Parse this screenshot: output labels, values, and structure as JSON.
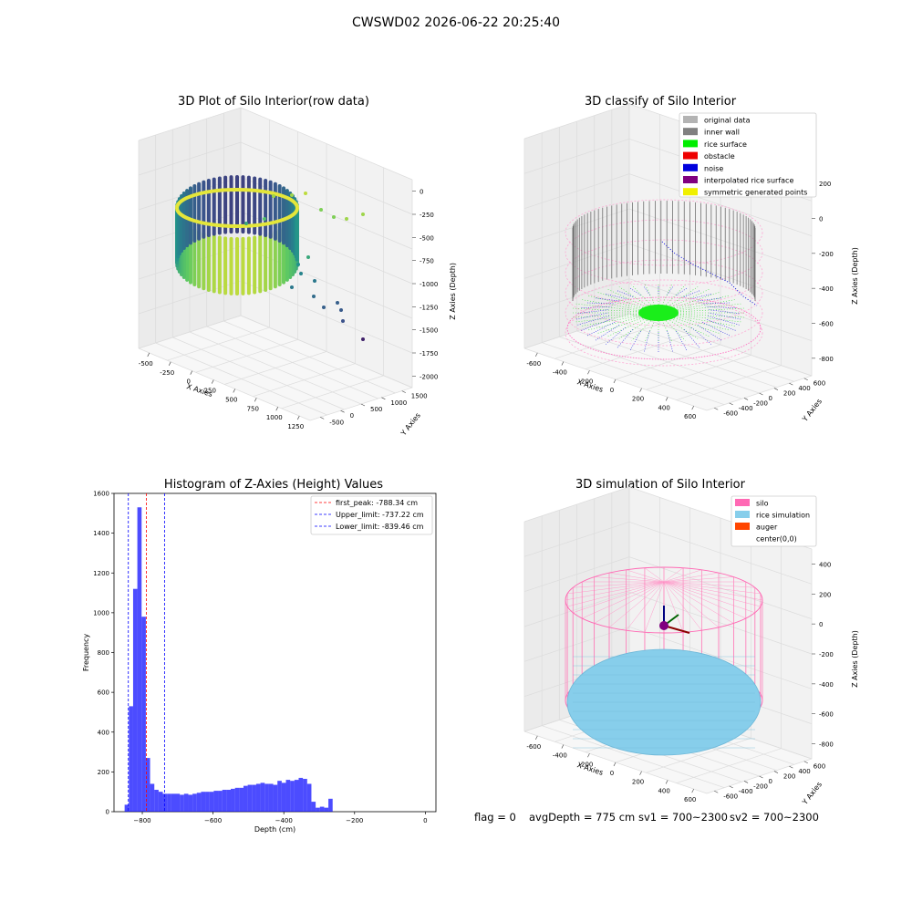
{
  "suptitle": "CWSWD02 2026-06-22 20:25:40",
  "footer": {
    "flag": "flag = 0",
    "avg": "avgDepth = 775 cm",
    "sv1": "sv1 = 700~2300",
    "sv2": "sv2 = 700~2300"
  },
  "chart_data": [
    {
      "type": "scatter",
      "title": "3D Plot of Silo Interior(row data)",
      "xlabel": "X Axies",
      "ylabel": "Y Axies",
      "zlabel": "Z Axies (Depth)",
      "x_ticks": [
        "-500",
        "-250",
        "0",
        "250",
        "500",
        "750",
        "1000",
        "1250"
      ],
      "y_ticks": [
        "-500",
        "0",
        "500",
        "1000",
        "1500"
      ],
      "z_ticks": [
        "0",
        "-250",
        "-500",
        "-750",
        "-1000",
        "-1250",
        "-1500",
        "-1750",
        "-2000"
      ],
      "colormap": "viridis"
    },
    {
      "type": "scatter",
      "title": "3D classify of Silo Interior",
      "xlabel": "X Axies",
      "ylabel": "Y Axies",
      "zlabel": "Z Axies (Depth)",
      "x_ticks": [
        "-600",
        "-400",
        "-200",
        "0",
        "200",
        "400",
        "600"
      ],
      "y_ticks": [
        "-600",
        "-400",
        "-200",
        "0",
        "200",
        "400",
        "600"
      ],
      "z_ticks": [
        "200",
        "0",
        "-200",
        "-400",
        "-600",
        "-800"
      ],
      "legend": [
        {
          "label": "original data",
          "color": "#b3b3b3"
        },
        {
          "label": "inner wall",
          "color": "#808080"
        },
        {
          "label": "rice surface",
          "color": "#00ee00"
        },
        {
          "label": "obstacle",
          "color": "#ee0000"
        },
        {
          "label": "noise",
          "color": "#0000dd"
        },
        {
          "label": "interpolated rice surface",
          "color": "#800080"
        },
        {
          "label": "symmetric generated points",
          "color": "#f0f000"
        }
      ]
    },
    {
      "type": "bar",
      "title": "Histogram of Z-Axies (Height) Values",
      "xlabel": "Depth (cm)",
      "ylabel": "Frequency",
      "xlim": [
        -880,
        30
      ],
      "ylim": [
        0,
        1600
      ],
      "x_ticks": [
        -800,
        -600,
        -400,
        -200,
        0
      ],
      "x_tick_labels": [
        "−800",
        "−600",
        "−400",
        "−200",
        "0"
      ],
      "y_ticks": [
        0,
        200,
        400,
        600,
        800,
        1000,
        1200,
        1400,
        1600
      ],
      "bin_width": 12,
      "bin_start": -850,
      "values": [
        35,
        530,
        1120,
        1530,
        980,
        270,
        140,
        110,
        100,
        90,
        90,
        90,
        90,
        85,
        90,
        85,
        90,
        95,
        100,
        100,
        100,
        105,
        105,
        110,
        110,
        115,
        120,
        120,
        130,
        135,
        135,
        140,
        145,
        140,
        140,
        135,
        155,
        145,
        160,
        155,
        160,
        170,
        165,
        140,
        50,
        20,
        25,
        20,
        65
      ],
      "color": "#0000ff",
      "vlines": [
        {
          "label": "first_peak: -788.34 cm",
          "x": -788.34,
          "color": "#ff0000"
        },
        {
          "label": "Upper_limit: -737.22 cm",
          "x": -737.22,
          "color": "#0000ff"
        },
        {
          "label": "Lower_limit: -839.46 cm",
          "x": -839.46,
          "color": "#0000ff"
        }
      ]
    },
    {
      "type": "scatter",
      "title": "3D simulation of Silo Interior",
      "xlabel": "X Axies",
      "ylabel": "Y Axies",
      "zlabel": "Z Axies (Depth)",
      "x_ticks": [
        "-600",
        "-400",
        "-200",
        "0",
        "200",
        "400",
        "600"
      ],
      "y_ticks": [
        "-600",
        "-400",
        "-200",
        "0",
        "200",
        "400",
        "600"
      ],
      "z_ticks": [
        "400",
        "200",
        "0",
        "-200",
        "-400",
        "-600",
        "-800"
      ],
      "legend": [
        {
          "label": "silo",
          "color": "#ff69b4"
        },
        {
          "label": "rice simulation",
          "color": "#87ceeb"
        },
        {
          "label": "auger",
          "color": "#ff4500"
        },
        {
          "label": "center(0,0)",
          "color": ""
        }
      ]
    }
  ]
}
